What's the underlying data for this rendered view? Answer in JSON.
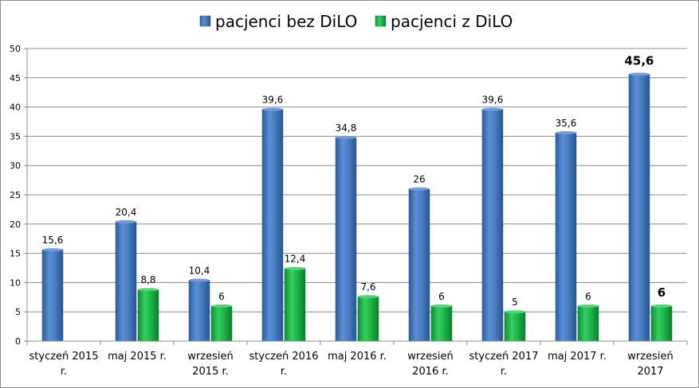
{
  "chart_data": {
    "type": "bar",
    "title": "",
    "xlabel": "",
    "ylabel": "",
    "ylim": [
      0,
      50
    ],
    "yticks": [
      0,
      5,
      10,
      15,
      20,
      25,
      30,
      35,
      40,
      45,
      50
    ],
    "grid": true,
    "legend_position": "top-center",
    "categories": [
      [
        "styczeń 2015",
        "r."
      ],
      [
        "maj 2015 r."
      ],
      [
        "wrzesień",
        "2015 r."
      ],
      [
        "styczeń 2016",
        "r."
      ],
      [
        "maj 2016 r."
      ],
      [
        "wrzesień",
        "2016 r."
      ],
      [
        "styczeń 2017",
        "r."
      ],
      [
        "maj 2017 r."
      ],
      [
        "wrzesień",
        "2017"
      ]
    ],
    "series": [
      {
        "name": "pacjenci bez DiLO",
        "color": "#4a7ec2",
        "values": [
          15.6,
          20.4,
          10.4,
          39.6,
          34.8,
          26,
          39.6,
          35.6,
          45.6
        ],
        "labels": [
          "15,6",
          "20,4",
          "10,4",
          "39,6",
          "34,8",
          "26",
          "39,6",
          "35,6",
          "45,6"
        ]
      },
      {
        "name": "pacjenci z DiLO",
        "color": "#1fb84a",
        "values": [
          null,
          8.8,
          6,
          12.4,
          7.6,
          6,
          5,
          6,
          6
        ],
        "labels": [
          "",
          "8,8",
          "6",
          "12,4",
          "7,6",
          "6",
          "5",
          "6",
          "6"
        ]
      }
    ],
    "emphasized_category_index": 8
  }
}
